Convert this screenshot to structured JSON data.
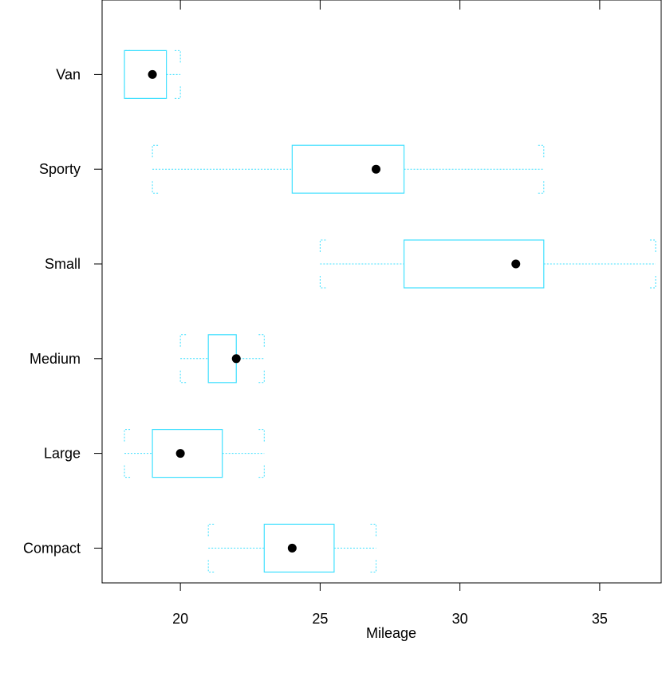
{
  "chart_data": {
    "type": "boxplot",
    "title": "",
    "xlabel": "Mileage",
    "ylabel": "",
    "xlim": [
      17.2,
      37.2
    ],
    "x_ticks": [
      20,
      25,
      30,
      35
    ],
    "grid": false,
    "colors": {
      "box": "#40e0ff",
      "median_dot": "#000000",
      "frame": "#000000"
    },
    "categories": [
      "Compact",
      "Large",
      "Medium",
      "Small",
      "Sporty",
      "Van"
    ],
    "boxes": [
      {
        "category": "Compact",
        "min": 21,
        "q1": 23,
        "median": 24,
        "q3": 25.5,
        "max": 27
      },
      {
        "category": "Large",
        "min": 18,
        "q1": 19,
        "median": 20,
        "q3": 21.5,
        "max": 23
      },
      {
        "category": "Medium",
        "min": 20,
        "q1": 21,
        "median": 22,
        "q3": 22,
        "max": 23
      },
      {
        "category": "Small",
        "min": 25,
        "q1": 28,
        "median": 32,
        "q3": 33,
        "max": 37
      },
      {
        "category": "Sporty",
        "min": 19,
        "q1": 24,
        "median": 27,
        "q3": 28,
        "max": 33
      },
      {
        "category": "Van",
        "min": 18,
        "q1": 18,
        "median": 19,
        "q3": 19.5,
        "max": 20
      }
    ]
  }
}
